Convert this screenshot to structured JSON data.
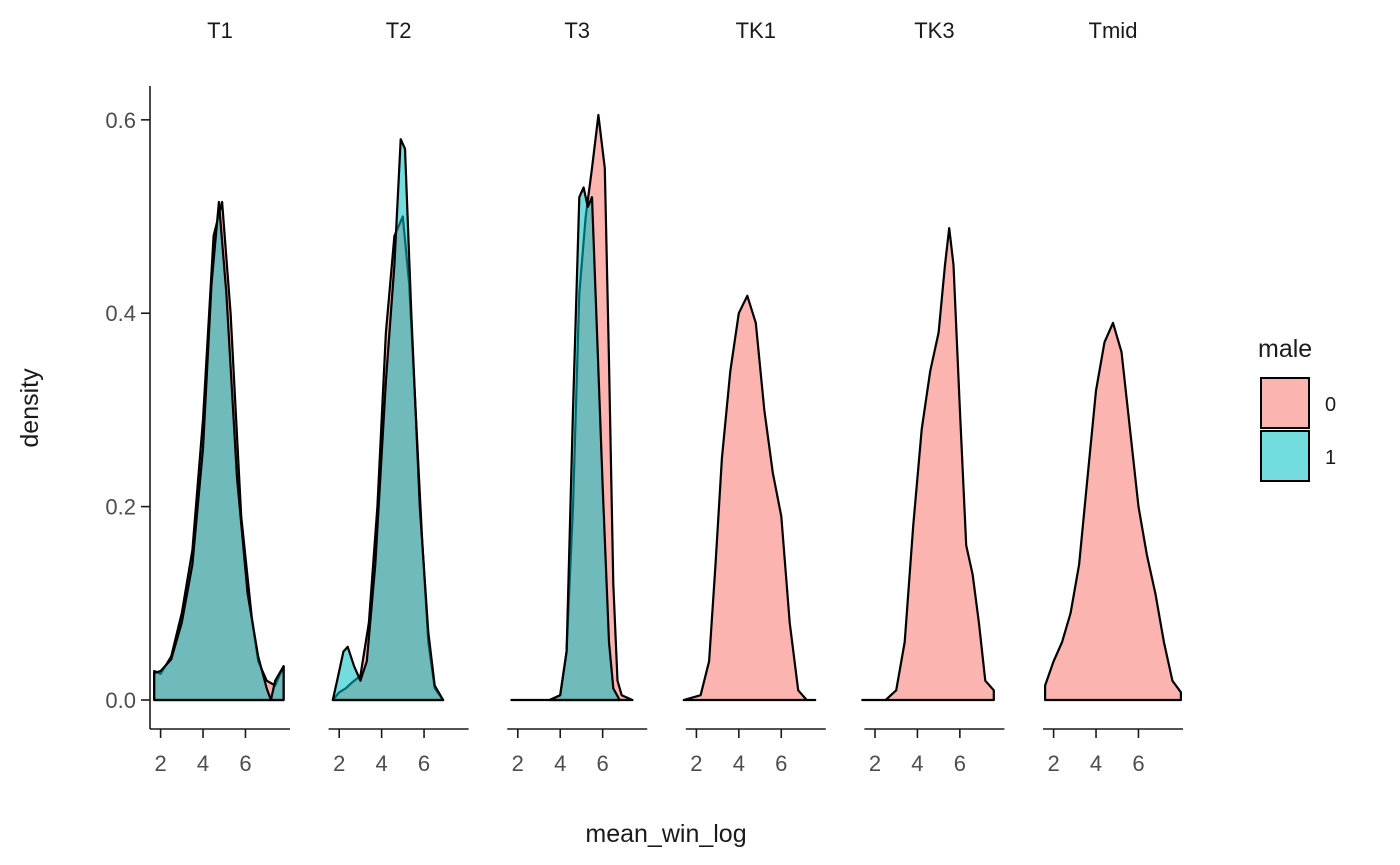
{
  "chart_data": {
    "type": "area",
    "xlabel": "mean_win_log",
    "ylabel": "density",
    "ylim": [
      -0.03,
      0.635
    ],
    "xlim": [
      1.5,
      8.1
    ],
    "x_ticks": [
      2,
      4,
      6
    ],
    "y_ticks": [
      0.0,
      0.2,
      0.4,
      0.6
    ],
    "y_tick_labels": [
      "0.0",
      "0.2",
      "0.4",
      "0.6"
    ],
    "x_tick_labels": [
      "2",
      "4",
      "6"
    ],
    "legend": {
      "title": "male",
      "placement": "right",
      "entries": [
        {
          "label": "0",
          "color": "#F8766D"
        },
        {
          "label": "1",
          "color": "#00BFC4"
        }
      ]
    },
    "fill_alpha": 0.55,
    "panels": [
      {
        "name": "T1",
        "series": [
          {
            "name": "0",
            "color": "#F8766D",
            "points": [
              [
                1.7,
                0.0
              ],
              [
                1.7,
                0.03
              ],
              [
                2.0,
                0.027
              ],
              [
                2.5,
                0.045
              ],
              [
                3.0,
                0.09
              ],
              [
                3.5,
                0.155
              ],
              [
                4.0,
                0.29
              ],
              [
                4.5,
                0.48
              ],
              [
                4.9,
                0.515
              ],
              [
                5.3,
                0.4
              ],
              [
                5.8,
                0.19
              ],
              [
                6.3,
                0.085
              ],
              [
                6.6,
                0.04
              ],
              [
                7.0,
                0.02
              ],
              [
                7.4,
                0.015
              ],
              [
                7.8,
                0.035
              ],
              [
                7.8,
                0.0
              ]
            ]
          },
          {
            "name": "1",
            "color": "#00BFC4",
            "points": [
              [
                1.7,
                0.0
              ],
              [
                1.7,
                0.028
              ],
              [
                2.0,
                0.03
              ],
              [
                2.5,
                0.042
              ],
              [
                3.0,
                0.08
              ],
              [
                3.5,
                0.14
              ],
              [
                4.0,
                0.26
              ],
              [
                4.4,
                0.43
              ],
              [
                4.75,
                0.515
              ],
              [
                5.1,
                0.42
              ],
              [
                5.6,
                0.23
              ],
              [
                6.1,
                0.11
              ],
              [
                6.6,
                0.045
              ],
              [
                7.0,
                0.012
              ],
              [
                7.2,
                0.0
              ],
              [
                7.4,
                0.02
              ],
              [
                7.8,
                0.035
              ],
              [
                7.8,
                0.0
              ]
            ]
          }
        ]
      },
      {
        "name": "T2",
        "series": [
          {
            "name": "0",
            "color": "#F8766D",
            "points": [
              [
                1.7,
                0.0
              ],
              [
                2.0,
                0.008
              ],
              [
                2.3,
                0.012
              ],
              [
                2.6,
                0.018
              ],
              [
                3.0,
                0.025
              ],
              [
                3.4,
                0.08
              ],
              [
                3.8,
                0.2
              ],
              [
                4.2,
                0.38
              ],
              [
                4.6,
                0.48
              ],
              [
                5.0,
                0.5
              ],
              [
                5.3,
                0.43
              ],
              [
                5.6,
                0.3
              ],
              [
                5.9,
                0.17
              ],
              [
                6.2,
                0.06
              ],
              [
                6.5,
                0.012
              ],
              [
                6.9,
                0.0
              ]
            ]
          },
          {
            "name": "1",
            "color": "#00BFC4",
            "points": [
              [
                1.7,
                0.0
              ],
              [
                1.9,
                0.02
              ],
              [
                2.2,
                0.05
              ],
              [
                2.4,
                0.055
              ],
              [
                2.7,
                0.035
              ],
              [
                3.0,
                0.02
              ],
              [
                3.3,
                0.04
              ],
              [
                3.7,
                0.14
              ],
              [
                4.2,
                0.33
              ],
              [
                4.6,
                0.45
              ],
              [
                4.9,
                0.58
              ],
              [
                5.1,
                0.57
              ],
              [
                5.4,
                0.4
              ],
              [
                5.8,
                0.2
              ],
              [
                6.2,
                0.07
              ],
              [
                6.5,
                0.015
              ],
              [
                6.9,
                0.0
              ]
            ]
          }
        ]
      },
      {
        "name": "T3",
        "series": [
          {
            "name": "0",
            "color": "#F8766D",
            "points": [
              [
                1.7,
                0.0
              ],
              [
                3.5,
                0.0
              ],
              [
                4.0,
                0.005
              ],
              [
                4.3,
                0.05
              ],
              [
                4.6,
                0.2
              ],
              [
                4.9,
                0.42
              ],
              [
                5.2,
                0.5
              ],
              [
                5.5,
                0.55
              ],
              [
                5.8,
                0.605
              ],
              [
                6.1,
                0.55
              ],
              [
                6.3,
                0.35
              ],
              [
                6.5,
                0.12
              ],
              [
                6.7,
                0.02
              ],
              [
                6.9,
                0.005
              ],
              [
                7.4,
                0.0
              ]
            ]
          },
          {
            "name": "1",
            "color": "#00BFC4",
            "points": [
              [
                3.5,
                0.0
              ],
              [
                4.0,
                0.005
              ],
              [
                4.3,
                0.05
              ],
              [
                4.6,
                0.3
              ],
              [
                4.9,
                0.52
              ],
              [
                5.1,
                0.53
              ],
              [
                5.3,
                0.51
              ],
              [
                5.5,
                0.52
              ],
              [
                5.7,
                0.4
              ],
              [
                6.0,
                0.22
              ],
              [
                6.3,
                0.06
              ],
              [
                6.5,
                0.012
              ],
              [
                6.8,
                0.0
              ]
            ]
          }
        ]
      },
      {
        "name": "TK1",
        "series": [
          {
            "name": "0",
            "color": "#F8766D",
            "points": [
              [
                1.4,
                0.0
              ],
              [
                2.2,
                0.005
              ],
              [
                2.6,
                0.04
              ],
              [
                2.9,
                0.14
              ],
              [
                3.2,
                0.25
              ],
              [
                3.6,
                0.34
              ],
              [
                4.0,
                0.4
              ],
              [
                4.4,
                0.418
              ],
              [
                4.8,
                0.39
              ],
              [
                5.2,
                0.3
              ],
              [
                5.6,
                0.235
              ],
              [
                6.0,
                0.19
              ],
              [
                6.4,
                0.08
              ],
              [
                6.8,
                0.01
              ],
              [
                7.2,
                0.0
              ],
              [
                7.6,
                0.0
              ]
            ]
          }
        ]
      },
      {
        "name": "TK3",
        "series": [
          {
            "name": "0",
            "color": "#F8766D",
            "points": [
              [
                1.4,
                0.0
              ],
              [
                2.5,
                0.0
              ],
              [
                3.0,
                0.01
              ],
              [
                3.4,
                0.06
              ],
              [
                3.8,
                0.18
              ],
              [
                4.2,
                0.28
              ],
              [
                4.6,
                0.34
              ],
              [
                5.0,
                0.38
              ],
              [
                5.3,
                0.45
              ],
              [
                5.5,
                0.488
              ],
              [
                5.7,
                0.45
              ],
              [
                6.0,
                0.3
              ],
              [
                6.3,
                0.16
              ],
              [
                6.6,
                0.13
              ],
              [
                6.9,
                0.08
              ],
              [
                7.2,
                0.02
              ],
              [
                7.6,
                0.01
              ],
              [
                7.6,
                0.0
              ]
            ]
          }
        ]
      },
      {
        "name": "Tmid",
        "series": [
          {
            "name": "0",
            "color": "#F8766D",
            "points": [
              [
                1.6,
                0.0
              ],
              [
                1.6,
                0.015
              ],
              [
                2.0,
                0.04
              ],
              [
                2.4,
                0.06
              ],
              [
                2.8,
                0.09
              ],
              [
                3.2,
                0.14
              ],
              [
                3.6,
                0.23
              ],
              [
                4.0,
                0.32
              ],
              [
                4.4,
                0.37
              ],
              [
                4.8,
                0.39
              ],
              [
                5.2,
                0.36
              ],
              [
                5.6,
                0.28
              ],
              [
                6.0,
                0.2
              ],
              [
                6.4,
                0.15
              ],
              [
                6.8,
                0.11
              ],
              [
                7.2,
                0.06
              ],
              [
                7.6,
                0.02
              ],
              [
                8.0,
                0.008
              ],
              [
                8.0,
                0.0
              ]
            ]
          }
        ]
      }
    ]
  }
}
